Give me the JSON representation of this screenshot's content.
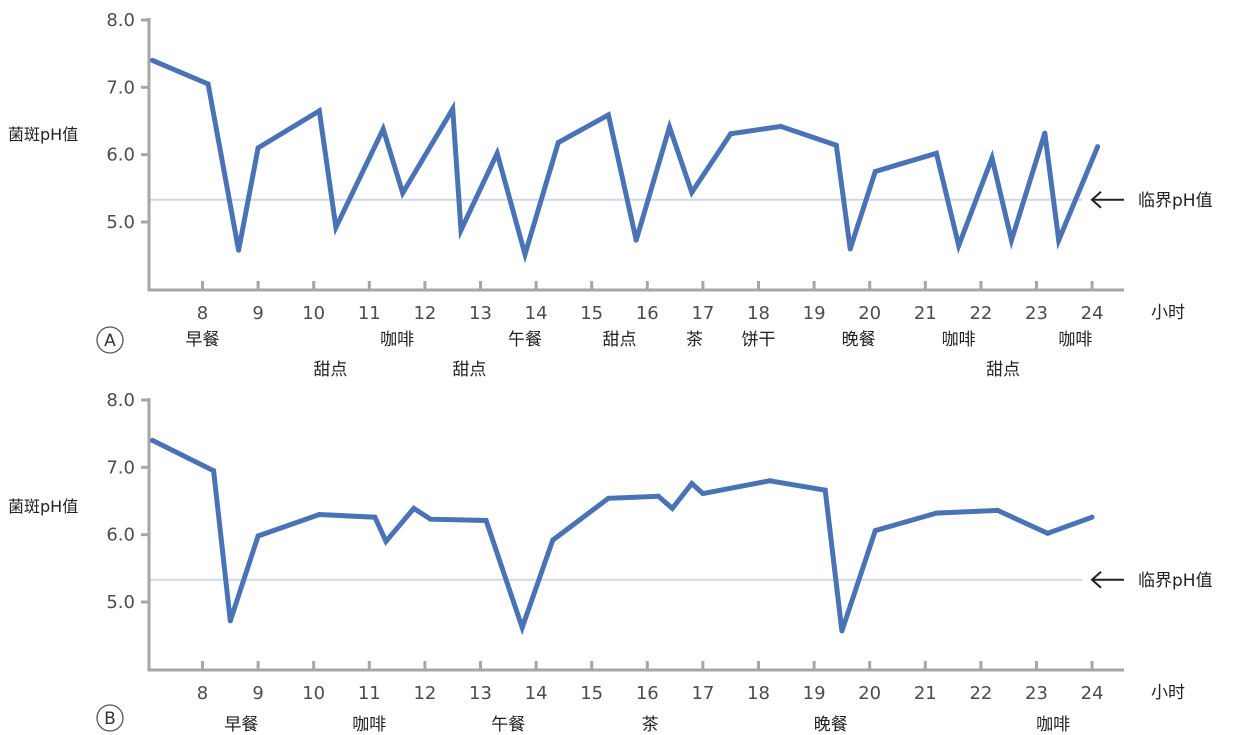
{
  "chart_data": [
    {
      "panel": "A",
      "type": "line",
      "ylabel": "菌斑pH值",
      "xunit": "小时",
      "y_ticks": [
        "5.0",
        "6.0",
        "7.0",
        "8.0"
      ],
      "ylim": [
        4.0,
        8.0
      ],
      "x_ticks": [
        8,
        9,
        10,
        11,
        12,
        13,
        14,
        15,
        16,
        17,
        18,
        19,
        20,
        21,
        22,
        23,
        24
      ],
      "xlim": [
        7.1,
        24.8
      ],
      "threshold": {
        "value": 5.33,
        "label": "临界pH值"
      },
      "x": [
        7.1,
        8.1,
        8.65,
        9.0,
        10.1,
        10.4,
        11.25,
        11.6,
        12.5,
        12.65,
        13.3,
        13.8,
        14.4,
        15.3,
        15.8,
        16.4,
        16.8,
        17.5,
        18.4,
        19.4,
        19.65,
        20.1,
        21.2,
        21.6,
        22.2,
        22.55,
        23.15,
        23.4,
        24.1
      ],
      "values": [
        7.4,
        7.05,
        4.58,
        6.1,
        6.65,
        4.92,
        6.38,
        5.43,
        6.68,
        4.88,
        6.02,
        4.52,
        6.18,
        6.59,
        4.73,
        6.41,
        5.44,
        6.31,
        6.42,
        6.14,
        4.6,
        5.75,
        6.02,
        4.65,
        5.95,
        4.73,
        6.32,
        4.73,
        6.12
      ],
      "events_row1": [
        {
          "x": 8.0,
          "label": "早餐"
        },
        {
          "x": 11.5,
          "label": "咖啡"
        },
        {
          "x": 13.8,
          "label": "午餐"
        },
        {
          "x": 15.5,
          "label": "甜点"
        },
        {
          "x": 16.85,
          "label": "茶"
        },
        {
          "x": 18.0,
          "label": "饼干"
        },
        {
          "x": 19.8,
          "label": "晚餐"
        },
        {
          "x": 21.6,
          "label": "咖啡"
        },
        {
          "x": 23.7,
          "label": "咖啡"
        }
      ],
      "events_row2": [
        {
          "x": 10.3,
          "label": "甜点"
        },
        {
          "x": 12.8,
          "label": "甜点"
        },
        {
          "x": 22.4,
          "label": "甜点"
        }
      ]
    },
    {
      "panel": "B",
      "type": "line",
      "ylabel": "菌斑pH值",
      "xunit": "小时",
      "y_ticks": [
        "5.0",
        "6.0",
        "7.0",
        "8.0"
      ],
      "ylim": [
        4.0,
        8.0
      ],
      "x_ticks": [
        8,
        9,
        10,
        11,
        12,
        13,
        14,
        15,
        16,
        17,
        18,
        19,
        20,
        21,
        22,
        23,
        24
      ],
      "xlim": [
        7.1,
        24.8
      ],
      "threshold": {
        "value": 5.33,
        "label": "临界pH值"
      },
      "x": [
        7.1,
        8.2,
        8.5,
        9.0,
        10.1,
        11.1,
        11.3,
        11.8,
        12.1,
        13.1,
        13.75,
        14.3,
        15.3,
        16.2,
        16.45,
        16.8,
        17.0,
        18.2,
        19.2,
        19.5,
        20.1,
        21.2,
        22.3,
        23.2,
        24.0
      ],
      "values": [
        7.4,
        6.95,
        4.72,
        5.98,
        6.3,
        6.26,
        5.9,
        6.39,
        6.23,
        6.21,
        4.62,
        5.92,
        6.54,
        6.57,
        6.39,
        6.76,
        6.61,
        6.8,
        6.66,
        4.57,
        6.06,
        6.32,
        6.36,
        6.02,
        6.26
      ],
      "events_row1": [
        {
          "x": 8.7,
          "label": "早餐"
        },
        {
          "x": 11.0,
          "label": "咖啡"
        },
        {
          "x": 13.5,
          "label": "午餐"
        },
        {
          "x": 16.05,
          "label": "茶"
        },
        {
          "x": 19.3,
          "label": "晚餐"
        },
        {
          "x": 23.3,
          "label": "咖啡"
        }
      ],
      "events_row2": []
    }
  ]
}
